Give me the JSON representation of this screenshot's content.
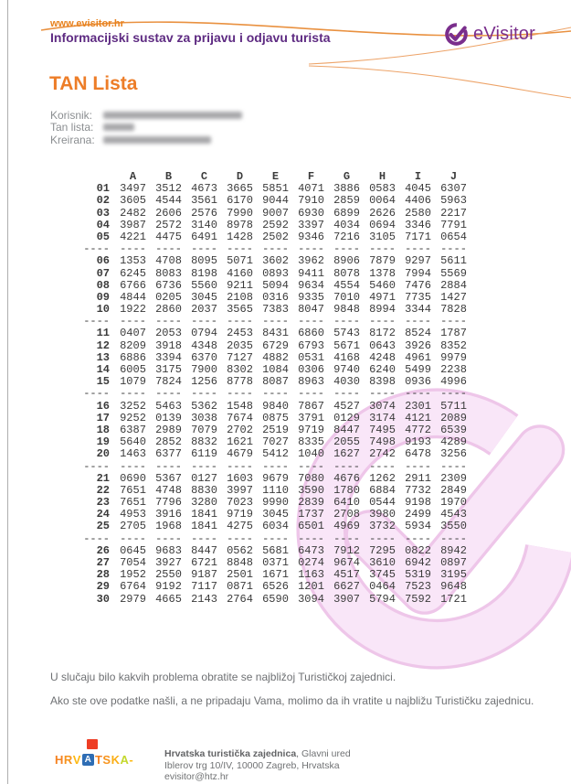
{
  "header": {
    "url": "www.evisitor.hr",
    "subtitle": "Informacijski sustav za prijavu i odjavu turista",
    "logo_text": "eVisitor"
  },
  "page_title": "TAN Lista",
  "info": {
    "user_label": "Korisnik:",
    "tan_label": "Tan lista:",
    "created_label": "Kreirana:"
  },
  "table": {
    "columns": [
      "A",
      "B",
      "C",
      "D",
      "E",
      "F",
      "G",
      "H",
      "I",
      "J"
    ],
    "separator": "----",
    "group_size": 5,
    "rows": [
      {
        "label": "01",
        "values": [
          "3497",
          "3512",
          "4673",
          "3665",
          "5851",
          "4071",
          "3886",
          "0583",
          "4045",
          "6307"
        ]
      },
      {
        "label": "02",
        "values": [
          "3605",
          "4544",
          "3561",
          "6170",
          "9044",
          "7910",
          "2859",
          "0064",
          "4406",
          "5963"
        ]
      },
      {
        "label": "03",
        "values": [
          "2482",
          "2606",
          "2576",
          "7990",
          "9007",
          "6930",
          "6899",
          "2626",
          "2580",
          "2217"
        ]
      },
      {
        "label": "04",
        "values": [
          "3987",
          "2572",
          "3140",
          "8978",
          "2592",
          "3397",
          "4034",
          "0694",
          "3346",
          "7791"
        ]
      },
      {
        "label": "05",
        "values": [
          "4221",
          "4475",
          "6491",
          "1428",
          "2502",
          "9346",
          "7216",
          "3105",
          "7171",
          "0654"
        ]
      },
      {
        "label": "06",
        "values": [
          "1353",
          "4708",
          "8095",
          "5071",
          "3602",
          "3962",
          "8906",
          "7879",
          "9297",
          "5611"
        ]
      },
      {
        "label": "07",
        "values": [
          "6245",
          "8083",
          "8198",
          "4160",
          "0893",
          "9411",
          "8078",
          "1378",
          "7994",
          "5569"
        ]
      },
      {
        "label": "08",
        "values": [
          "6766",
          "6736",
          "5560",
          "9211",
          "5094",
          "9634",
          "4554",
          "5460",
          "7476",
          "2884"
        ]
      },
      {
        "label": "09",
        "values": [
          "4844",
          "0205",
          "3045",
          "2108",
          "0316",
          "9335",
          "7010",
          "4971",
          "7735",
          "1427"
        ]
      },
      {
        "label": "10",
        "values": [
          "1922",
          "2860",
          "2037",
          "3565",
          "7383",
          "8047",
          "9848",
          "8994",
          "3344",
          "7828"
        ]
      },
      {
        "label": "11",
        "values": [
          "0407",
          "2053",
          "0794",
          "2453",
          "8431",
          "6860",
          "5743",
          "8172",
          "8524",
          "1787"
        ]
      },
      {
        "label": "12",
        "values": [
          "8209",
          "3918",
          "4348",
          "2035",
          "6729",
          "6793",
          "5671",
          "0643",
          "3926",
          "8352"
        ]
      },
      {
        "label": "13",
        "values": [
          "6886",
          "3394",
          "6370",
          "7127",
          "4882",
          "0531",
          "4168",
          "4248",
          "4961",
          "9979"
        ]
      },
      {
        "label": "14",
        "values": [
          "6005",
          "3175",
          "7900",
          "8302",
          "1084",
          "0306",
          "9740",
          "6240",
          "5499",
          "2238"
        ]
      },
      {
        "label": "15",
        "values": [
          "1079",
          "7824",
          "1256",
          "8778",
          "8087",
          "8963",
          "4030",
          "8398",
          "0936",
          "4996"
        ]
      },
      {
        "label": "16",
        "values": [
          "3252",
          "5463",
          "5362",
          "1548",
          "9840",
          "7867",
          "4527",
          "3074",
          "2301",
          "5711"
        ]
      },
      {
        "label": "17",
        "values": [
          "9252",
          "0139",
          "3038",
          "7674",
          "0875",
          "3791",
          "0129",
          "3174",
          "4121",
          "2089"
        ]
      },
      {
        "label": "18",
        "values": [
          "6387",
          "2989",
          "7079",
          "2702",
          "2519",
          "9719",
          "8447",
          "7495",
          "4772",
          "6539"
        ]
      },
      {
        "label": "19",
        "values": [
          "5640",
          "2852",
          "8832",
          "1621",
          "7027",
          "8335",
          "2055",
          "7498",
          "9193",
          "4289"
        ]
      },
      {
        "label": "20",
        "values": [
          "1463",
          "6377",
          "6119",
          "4679",
          "5412",
          "1040",
          "1627",
          "2742",
          "6478",
          "3256"
        ]
      },
      {
        "label": "21",
        "values": [
          "0690",
          "5367",
          "0127",
          "1603",
          "9679",
          "7080",
          "4676",
          "1262",
          "2911",
          "2309"
        ]
      },
      {
        "label": "22",
        "values": [
          "7651",
          "4748",
          "8830",
          "3997",
          "1110",
          "3590",
          "1780",
          "6884",
          "7732",
          "2849"
        ]
      },
      {
        "label": "23",
        "values": [
          "7651",
          "7796",
          "3280",
          "7023",
          "9990",
          "2839",
          "6410",
          "0544",
          "9198",
          "1970"
        ]
      },
      {
        "label": "24",
        "values": [
          "4953",
          "3916",
          "1841",
          "9719",
          "3045",
          "1737",
          "2708",
          "3980",
          "2499",
          "4543"
        ]
      },
      {
        "label": "25",
        "values": [
          "2705",
          "1968",
          "1841",
          "4275",
          "6034",
          "6501",
          "4969",
          "3732",
          "5934",
          "3550"
        ]
      },
      {
        "label": "26",
        "values": [
          "0645",
          "9683",
          "8447",
          "0562",
          "5681",
          "6473",
          "7912",
          "7295",
          "0822",
          "8942"
        ]
      },
      {
        "label": "27",
        "values": [
          "7054",
          "3927",
          "6721",
          "8848",
          "0371",
          "0274",
          "9674",
          "3610",
          "6942",
          "0897"
        ]
      },
      {
        "label": "28",
        "values": [
          "1952",
          "2550",
          "9187",
          "2501",
          "1671",
          "1163",
          "4517",
          "3745",
          "5319",
          "3195"
        ]
      },
      {
        "label": "29",
        "values": [
          "6764",
          "9192",
          "7117",
          "0871",
          "6526",
          "1201",
          "6627",
          "0464",
          "7523",
          "9648"
        ]
      },
      {
        "label": "30",
        "values": [
          "2979",
          "4665",
          "2143",
          "2764",
          "6590",
          "3094",
          "3907",
          "5794",
          "7592",
          "1721"
        ]
      }
    ]
  },
  "footer": {
    "note1": "U slučaju bilo kakvih problema obratite se najbližoj Turističkoj zajednici.",
    "note2": "Ako ste ove podatke našli, a ne pripadaju Vama, molimo da ih vratite u najbližu Turističku zajednicu.",
    "org_bold": "Hrvatska turistička zajednica",
    "org_rest": ", Glavni ured",
    "address_line": "Iblerov trg 10/IV,  10000 Zagreb, Hrvatska",
    "email": "evisitor@htz.hr",
    "logo_letters": [
      {
        "ch": "H",
        "c": "#f58220"
      },
      {
        "ch": "R",
        "c": "#f7941d"
      },
      {
        "ch": "V",
        "c": "#fdb913"
      },
      {
        "ch": "A",
        "c": "#ffffff",
        "box": true
      },
      {
        "ch": "T",
        "c": "#f58220"
      },
      {
        "ch": "S",
        "c": "#f7941d"
      },
      {
        "ch": "K",
        "c": "#fbaf17"
      },
      {
        "ch": "A",
        "c": "#c4d82e"
      },
      {
        "ch": "-",
        "c": "#fdb913"
      }
    ]
  },
  "colors": {
    "orange": "#ed7d28",
    "purple": "#7a2e8c",
    "watermark_fill": "#f9e6f8",
    "watermark_edge": "#eec6e9",
    "red_square": "#ee3d24",
    "blue_box": "#2e6db4"
  }
}
